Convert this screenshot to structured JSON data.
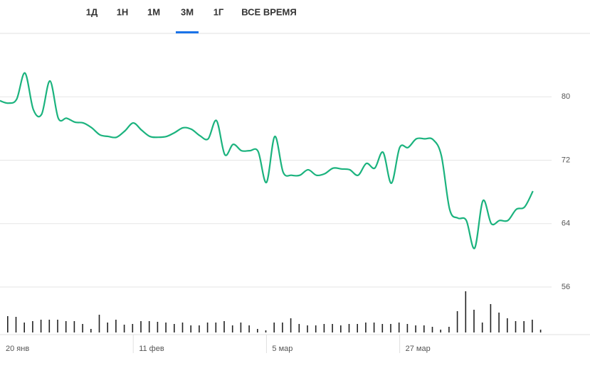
{
  "tabs": {
    "items": [
      "1Д",
      "1Н",
      "1М",
      "3М",
      "1Г",
      "ВСЕ ВРЕМЯ"
    ],
    "selected": 3
  },
  "chart_data": {
    "type": "line",
    "categories": [
      "20 янв",
      null,
      null,
      null,
      null,
      null,
      null,
      null,
      null,
      null,
      null,
      null,
      null,
      null,
      null,
      null,
      "11 фев",
      null,
      null,
      null,
      null,
      null,
      null,
      null,
      null,
      null,
      null,
      null,
      null,
      null,
      null,
      null,
      "5 мар",
      null,
      null,
      null,
      null,
      null,
      null,
      null,
      null,
      null,
      null,
      null,
      null,
      null,
      null,
      null,
      "27 мар",
      null,
      null,
      null,
      null,
      null,
      null,
      null,
      null,
      null,
      null,
      null,
      null,
      null,
      null,
      null,
      null
    ],
    "series": [
      {
        "color": "#1bb37e",
        "values": [
          79.5,
          79.2,
          79.7,
          83.0,
          78.4,
          77.8,
          82.0,
          77.3,
          77.3,
          76.8,
          76.7,
          76.1,
          75.2,
          75.0,
          74.9,
          75.7,
          76.7,
          75.8,
          75.0,
          74.9,
          75.0,
          75.5,
          76.1,
          75.9,
          75.1,
          74.7,
          77.0,
          72.7,
          74.0,
          73.2,
          73.2,
          73.1,
          69.2,
          75.0,
          70.5,
          70.1,
          70.1,
          70.8,
          70.1,
          70.3,
          71.0,
          70.9,
          70.8,
          70.1,
          71.6,
          71.0,
          73.0,
          69.1,
          73.6,
          73.6,
          74.7,
          74.7,
          74.6,
          72.6,
          65.8,
          64.7,
          64.4,
          60.9,
          66.9,
          64.0,
          64.4,
          64.4,
          65.8,
          66.1,
          68.1
        ]
      }
    ],
    "volume": {
      "color": "#222",
      "values": [
        23,
        22,
        14,
        16,
        18,
        18,
        18,
        16,
        16,
        12,
        5,
        25,
        14,
        18,
        11,
        12,
        16,
        16,
        15,
        14,
        12,
        14,
        10,
        10,
        14,
        14,
        16,
        10,
        14,
        10,
        5,
        3,
        14,
        14,
        20,
        12,
        10,
        10,
        12,
        12,
        10,
        12,
        12,
        14,
        14,
        12,
        12,
        14,
        12,
        10,
        10,
        8,
        4,
        8,
        30,
        58,
        32,
        14,
        40,
        28,
        20,
        16,
        16,
        18,
        4
      ]
    },
    "ylim": [
      50,
      88
    ],
    "yticks": [
      56,
      64,
      72,
      80
    ],
    "grid": true
  }
}
